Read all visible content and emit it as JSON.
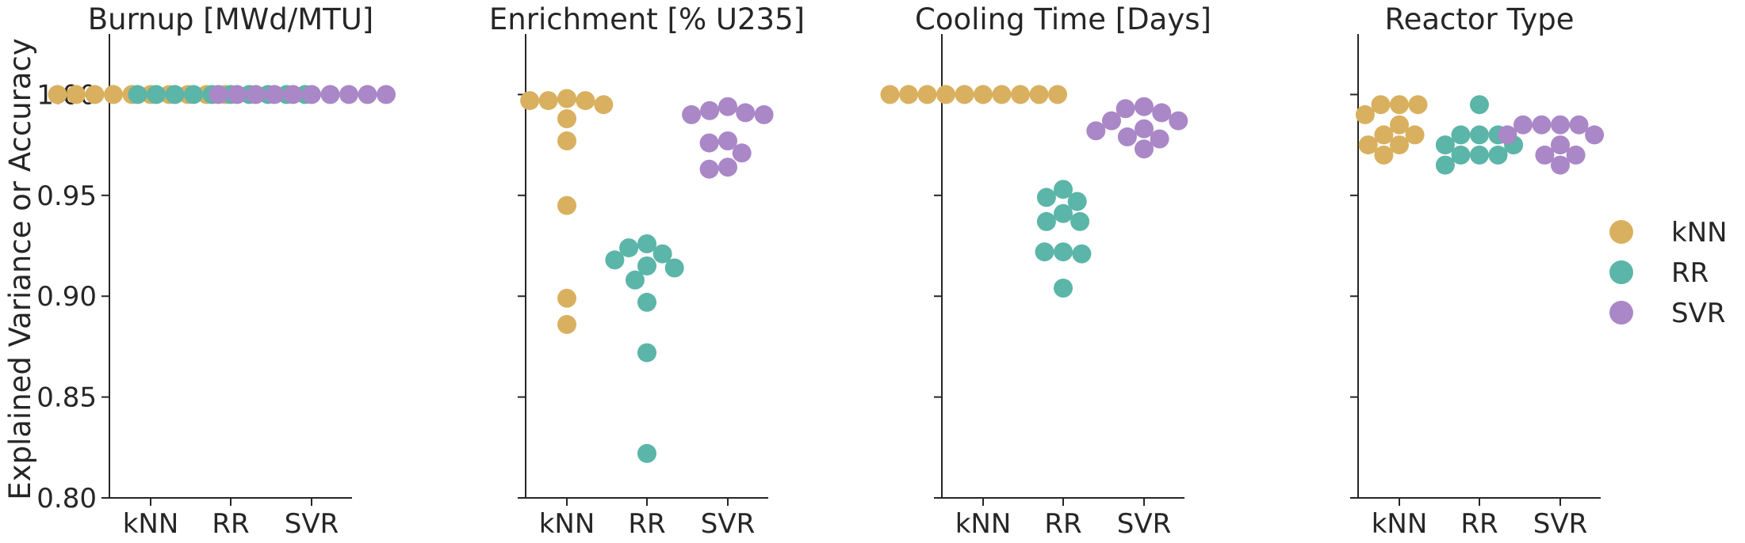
{
  "ylabel": "Explained Variance or Accuracy",
  "legend": [
    {
      "label": "kNN",
      "color": "#D9B05F"
    },
    {
      "label": "RR",
      "color": "#5BB5A8"
    },
    {
      "label": "SVR",
      "color": "#AA87C7"
    }
  ],
  "chart_data": {
    "type": "scatter",
    "style": "swarm",
    "categories": [
      "kNN",
      "RR",
      "SVR"
    ],
    "ylim": [
      0.8,
      1.03
    ],
    "yticks": [
      "0.80",
      "0.85",
      "0.90",
      "0.95",
      "1.00"
    ],
    "grid": false,
    "legend_position": "right",
    "panels": [
      {
        "title": "Burnup [MWd/MTU]",
        "series": [
          {
            "name": "kNN",
            "values": [
              1.0,
              1.0,
              1.0,
              1.0,
              1.0,
              1.0,
              1.0,
              1.0,
              1.0,
              1.0
            ]
          },
          {
            "name": "RR",
            "values": [
              1.0,
              1.0,
              1.0,
              1.0,
              1.0,
              1.0,
              1.0,
              1.0,
              1.0,
              1.0
            ]
          },
          {
            "name": "SVR",
            "values": [
              1.0,
              1.0,
              1.0,
              1.0,
              1.0,
              1.0,
              1.0,
              1.0,
              1.0,
              1.0
            ]
          }
        ]
      },
      {
        "title": "Enrichment [% U235]",
        "series": [
          {
            "name": "kNN",
            "values": [
              0.998,
              0.997,
              0.997,
              0.997,
              0.995,
              0.988,
              0.977,
              0.945,
              0.899,
              0.886
            ]
          },
          {
            "name": "RR",
            "values": [
              0.926,
              0.924,
              0.921,
              0.918,
              0.915,
              0.914,
              0.908,
              0.897,
              0.872,
              0.822
            ]
          },
          {
            "name": "SVR",
            "values": [
              0.994,
              0.992,
              0.991,
              0.99,
              0.99,
              0.977,
              0.976,
              0.971,
              0.964,
              0.963
            ]
          }
        ]
      },
      {
        "title": "Cooling Time [Days]",
        "series": [
          {
            "name": "kNN",
            "values": [
              1.0,
              1.0,
              1.0,
              1.0,
              1.0,
              1.0,
              1.0,
              1.0,
              1.0,
              1.0
            ]
          },
          {
            "name": "RR",
            "values": [
              0.953,
              0.949,
              0.947,
              0.941,
              0.937,
              0.937,
              0.922,
              0.922,
              0.921,
              0.904
            ]
          },
          {
            "name": "SVR",
            "values": [
              0.994,
              0.993,
              0.991,
              0.987,
              0.987,
              0.983,
              0.982,
              0.979,
              0.978,
              0.973
            ]
          }
        ]
      },
      {
        "title": "Reactor Type",
        "series": [
          {
            "name": "kNN",
            "values": [
              0.995,
              0.995,
              0.995,
              0.99,
              0.985,
              0.98,
              0.98,
              0.975,
              0.975,
              0.97
            ]
          },
          {
            "name": "RR",
            "values": [
              0.995,
              0.98,
              0.98,
              0.98,
              0.975,
              0.975,
              0.97,
              0.97,
              0.97,
              0.965
            ]
          },
          {
            "name": "SVR",
            "values": [
              0.985,
              0.985,
              0.985,
              0.985,
              0.98,
              0.98,
              0.975,
              0.97,
              0.97,
              0.965
            ]
          }
        ]
      }
    ]
  }
}
